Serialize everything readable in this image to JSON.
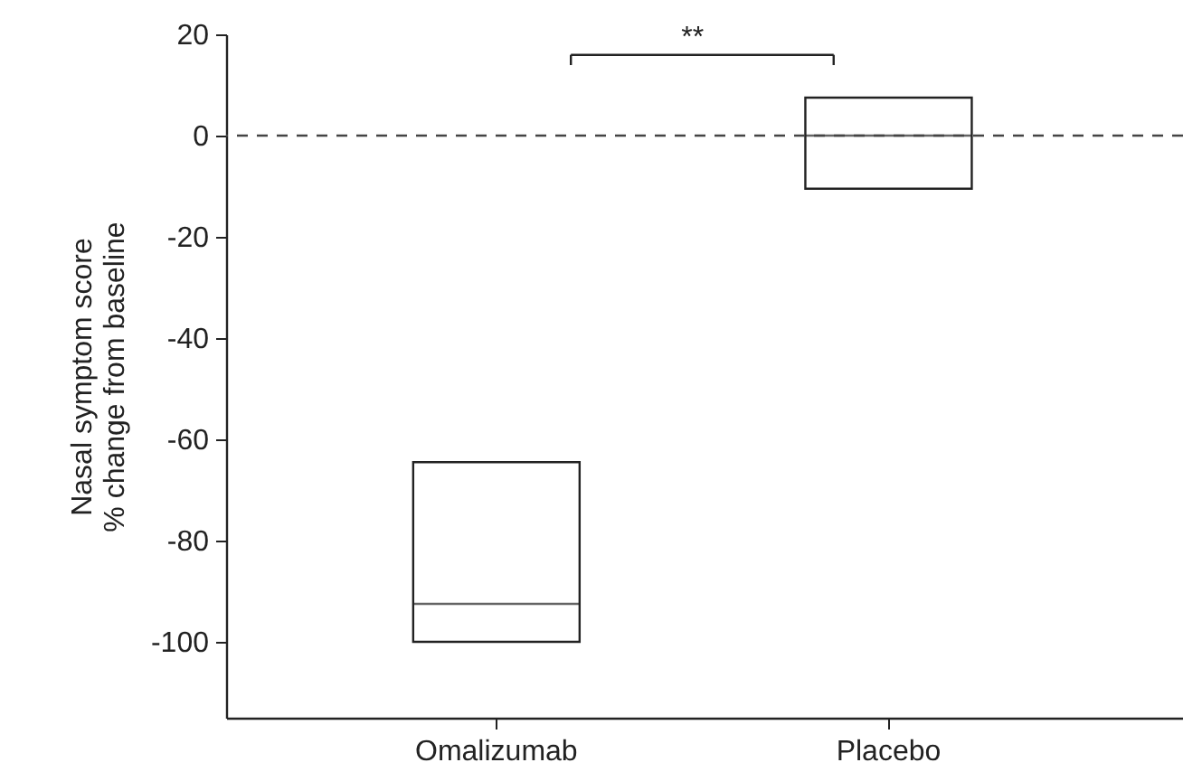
{
  "chart_data": {
    "type": "box",
    "ylabel": "Nasal symptom score\n% change from baseline",
    "categories": [
      "Omalizumab",
      "Placebo"
    ],
    "boxes": [
      {
        "low": -100,
        "q1": -100,
        "median": -92.5,
        "q3": -64.5,
        "high": -64.5
      },
      {
        "low": -10.5,
        "q1": -10.5,
        "median": 0,
        "q3": 7.5,
        "high": 7.5
      }
    ],
    "ylim": [
      -115,
      20
    ],
    "yticks": [
      -100,
      -80,
      -60,
      -40,
      -20,
      0,
      20
    ],
    "ref_lines": [
      {
        "axis": "y",
        "value": 0,
        "line_style": "dashed",
        "color": "#444444"
      }
    ],
    "annotations": [
      "**"
    ],
    "grid": false
  }
}
